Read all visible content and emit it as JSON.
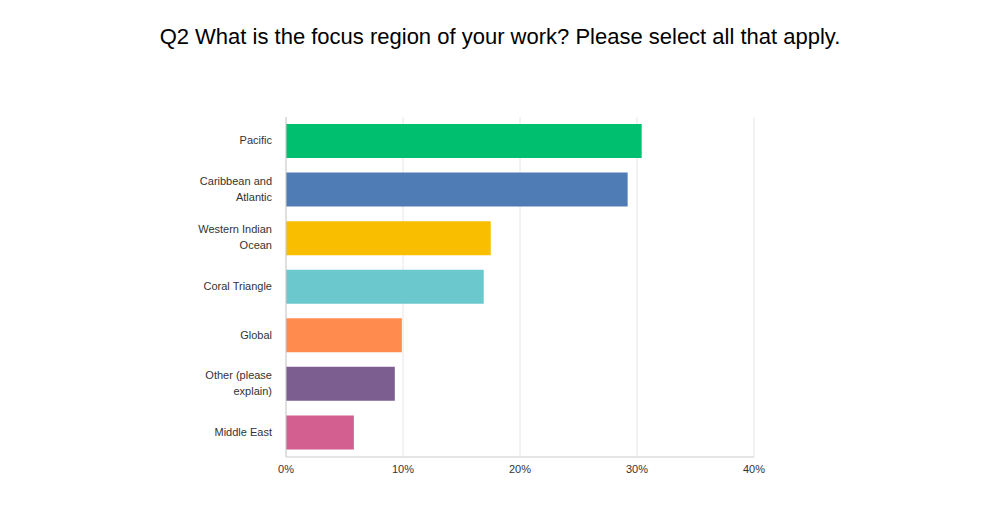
{
  "chart_data": {
    "type": "bar",
    "title": "Q2 What is the focus region of your work? Please select all that apply.",
    "orientation": "horizontal",
    "categories": [
      "Pacific",
      "Caribbean and Atlantic",
      "Western Indian Ocean",
      "Coral Triangle",
      "Global",
      "Other (please explain)",
      "Middle East"
    ],
    "values": [
      30.4,
      29.2,
      17.5,
      16.9,
      9.9,
      9.3,
      5.8
    ],
    "colors": [
      "#00bf6f",
      "#507cb6",
      "#f9be00",
      "#6bc8cd",
      "#ff8b4f",
      "#7d5e90",
      "#d25f90"
    ],
    "xlim": [
      0,
      40
    ],
    "xticks": [
      {
        "value": 0,
        "label": "0%"
      },
      {
        "value": 10,
        "label": "10%"
      },
      {
        "value": 20,
        "label": "20%"
      },
      {
        "value": 30,
        "label": "30%"
      },
      {
        "value": 40,
        "label": "40%"
      }
    ],
    "grid": true
  }
}
